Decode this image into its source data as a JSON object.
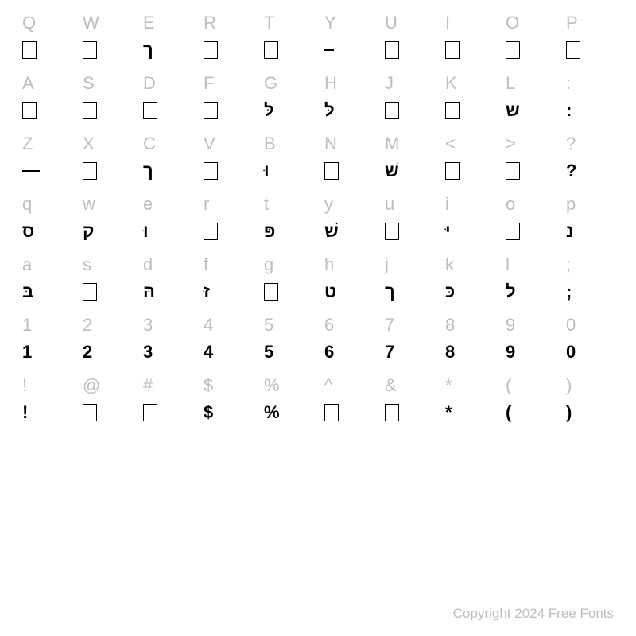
{
  "layout": {
    "columns": 10,
    "rows": 8,
    "cell_padding": "4px 8px",
    "background_color": "#ffffff"
  },
  "label_style": {
    "color": "#bdbdbd",
    "font_size": 22,
    "font_weight": 400
  },
  "glyph_style": {
    "color": "#000000",
    "font_size": 22,
    "font_weight": 700
  },
  "empty_box_style": {
    "width": 18,
    "height": 22,
    "border_color": "#000000",
    "border_width": 1.5
  },
  "copyright": "Copyright 2024 Free Fonts",
  "copyright_style": {
    "color": "#bdbdbd",
    "font_size": 17
  },
  "rows": [
    [
      {
        "label": "Q",
        "type": "box"
      },
      {
        "label": "W",
        "type": "box"
      },
      {
        "label": "E",
        "type": "text",
        "glyph": "ך"
      },
      {
        "label": "R",
        "type": "box"
      },
      {
        "label": "T",
        "type": "box"
      },
      {
        "label": "Y",
        "type": "short-dash"
      },
      {
        "label": "U",
        "type": "box"
      },
      {
        "label": "I",
        "type": "box"
      },
      {
        "label": "O",
        "type": "box"
      },
      {
        "label": "P",
        "type": "box"
      }
    ],
    [
      {
        "label": "A",
        "type": "box"
      },
      {
        "label": "S",
        "type": "box"
      },
      {
        "label": "D",
        "type": "box"
      },
      {
        "label": "F",
        "type": "box"
      },
      {
        "label": "G",
        "type": "text",
        "glyph": "לּ"
      },
      {
        "label": "H",
        "type": "text",
        "glyph": "לּ"
      },
      {
        "label": "J",
        "type": "box"
      },
      {
        "label": "K",
        "type": "box"
      },
      {
        "label": "L",
        "type": "text",
        "glyph": "שׁ"
      },
      {
        "label": ":",
        "type": "text",
        "glyph": ":"
      }
    ],
    [
      {
        "label": "Z",
        "type": "dash"
      },
      {
        "label": "X",
        "type": "box"
      },
      {
        "label": "C",
        "type": "text",
        "glyph": "ך"
      },
      {
        "label": "V",
        "type": "box"
      },
      {
        "label": "B",
        "type": "text",
        "glyph": "וּ"
      },
      {
        "label": "N",
        "type": "box"
      },
      {
        "label": "M",
        "type": "text",
        "glyph": "שּׁ"
      },
      {
        "label": "<",
        "type": "box"
      },
      {
        "label": ">",
        "type": "box"
      },
      {
        "label": "?",
        "type": "text",
        "glyph": "?"
      }
    ],
    [
      {
        "label": "q",
        "type": "text",
        "glyph": "ס"
      },
      {
        "label": "w",
        "type": "text",
        "glyph": "ק"
      },
      {
        "label": "e",
        "type": "text",
        "glyph": "וּ"
      },
      {
        "label": "r",
        "type": "box"
      },
      {
        "label": "t",
        "type": "text",
        "glyph": "פּ"
      },
      {
        "label": "y",
        "type": "text",
        "glyph": "שׁ"
      },
      {
        "label": "u",
        "type": "box"
      },
      {
        "label": "i",
        "type": "text",
        "glyph": "יּ"
      },
      {
        "label": "o",
        "type": "box"
      },
      {
        "label": "p",
        "type": "text",
        "glyph": "נּ"
      }
    ],
    [
      {
        "label": "a",
        "type": "text",
        "glyph": "בּ"
      },
      {
        "label": "s",
        "type": "box"
      },
      {
        "label": "d",
        "type": "text",
        "glyph": "הּ"
      },
      {
        "label": "f",
        "type": "text",
        "glyph": "זּ"
      },
      {
        "label": "g",
        "type": "box"
      },
      {
        "label": "h",
        "type": "text",
        "glyph": "ט"
      },
      {
        "label": "j",
        "type": "text",
        "glyph": "ך"
      },
      {
        "label": "k",
        "type": "text",
        "glyph": "כּ"
      },
      {
        "label": "l",
        "type": "text",
        "glyph": "ל"
      },
      {
        "label": ";",
        "type": "text",
        "glyph": ";"
      }
    ],
    [
      {
        "label": "1",
        "type": "text",
        "glyph": "1"
      },
      {
        "label": "2",
        "type": "text",
        "glyph": "2"
      },
      {
        "label": "3",
        "type": "text",
        "glyph": "3"
      },
      {
        "label": "4",
        "type": "text",
        "glyph": "4"
      },
      {
        "label": "5",
        "type": "text",
        "glyph": "5"
      },
      {
        "label": "6",
        "type": "text",
        "glyph": "6"
      },
      {
        "label": "7",
        "type": "text",
        "glyph": "7"
      },
      {
        "label": "8",
        "type": "text",
        "glyph": "8"
      },
      {
        "label": "9",
        "type": "text",
        "glyph": "9"
      },
      {
        "label": "0",
        "type": "text",
        "glyph": "0"
      }
    ],
    [
      {
        "label": "!",
        "type": "text",
        "glyph": "!"
      },
      {
        "label": "@",
        "type": "box"
      },
      {
        "label": "#",
        "type": "box"
      },
      {
        "label": "$",
        "type": "text",
        "glyph": "$"
      },
      {
        "label": "%",
        "type": "text",
        "glyph": "%"
      },
      {
        "label": "^",
        "type": "box"
      },
      {
        "label": "&",
        "type": "box"
      },
      {
        "label": "*",
        "type": "text",
        "glyph": "*"
      },
      {
        "label": "(",
        "type": "text",
        "glyph": "("
      },
      {
        "label": ")",
        "type": "text",
        "glyph": ")"
      }
    ]
  ]
}
